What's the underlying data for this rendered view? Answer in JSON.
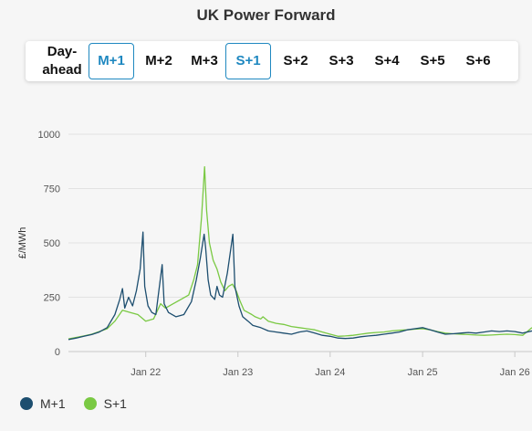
{
  "title": "UK Power Forward",
  "tabs": [
    {
      "id": "dayahead",
      "label": [
        "Day-",
        "ahead"
      ],
      "active": false
    },
    {
      "id": "m1",
      "label": "M+1",
      "active": true
    },
    {
      "id": "m2",
      "label": "M+2",
      "active": false
    },
    {
      "id": "m3",
      "label": "M+3",
      "active": false
    },
    {
      "id": "s1",
      "label": "S+1",
      "active": true
    },
    {
      "id": "s2",
      "label": "S+2",
      "active": false
    },
    {
      "id": "s3",
      "label": "S+3",
      "active": false
    },
    {
      "id": "s4",
      "label": "S+4",
      "active": false
    },
    {
      "id": "s5",
      "label": "S+5",
      "active": false
    },
    {
      "id": "s6",
      "label": "S+6",
      "active": false
    }
  ],
  "colors": {
    "m1": "#1d4e6f",
    "s1": "#7ac943",
    "accent": "#1f88c0"
  },
  "legend": [
    {
      "name": "M+1",
      "color": "#1d4e6f"
    },
    {
      "name": "S+1",
      "color": "#7ac943"
    }
  ],
  "chart_data": {
    "type": "line",
    "ylabel": "£/MWh",
    "ylim": [
      0,
      1000
    ],
    "yticks": [
      0,
      250,
      500,
      750,
      1000
    ],
    "xlim": [
      "2021-03-01",
      "2026-03-10"
    ],
    "xticks": [
      {
        "date": "2022-01-01",
        "label": "Jan 22"
      },
      {
        "date": "2023-01-01",
        "label": "Jan 23"
      },
      {
        "date": "2024-01-01",
        "label": "Jan 24"
      },
      {
        "date": "2025-01-01",
        "label": "Jan 25"
      },
      {
        "date": "2026-01-01",
        "label": "Jan 26"
      }
    ],
    "grid": true,
    "legend_position": "bottom-left",
    "series": [
      {
        "name": "M+1",
        "color": "#1d4e6f",
        "points": [
          [
            "2021-03-01",
            55
          ],
          [
            "2021-04-01",
            62
          ],
          [
            "2021-05-01",
            70
          ],
          [
            "2021-06-01",
            78
          ],
          [
            "2021-07-01",
            90
          ],
          [
            "2021-08-01",
            110
          ],
          [
            "2021-09-01",
            170
          ],
          [
            "2021-09-20",
            240
          ],
          [
            "2021-10-01",
            290
          ],
          [
            "2021-10-10",
            200
          ],
          [
            "2021-10-25",
            250
          ],
          [
            "2021-11-10",
            210
          ],
          [
            "2021-11-25",
            280
          ],
          [
            "2021-12-10",
            380
          ],
          [
            "2021-12-21",
            550
          ],
          [
            "2021-12-28",
            300
          ],
          [
            "2022-01-10",
            210
          ],
          [
            "2022-01-25",
            180
          ],
          [
            "2022-02-10",
            170
          ],
          [
            "2022-02-24",
            300
          ],
          [
            "2022-03-07",
            400
          ],
          [
            "2022-03-15",
            220
          ],
          [
            "2022-04-01",
            180
          ],
          [
            "2022-05-01",
            160
          ],
          [
            "2022-06-01",
            170
          ],
          [
            "2022-07-01",
            230
          ],
          [
            "2022-07-20",
            330
          ],
          [
            "2022-08-05",
            430
          ],
          [
            "2022-08-20",
            540
          ],
          [
            "2022-08-26",
            480
          ],
          [
            "2022-09-05",
            330
          ],
          [
            "2022-09-15",
            260
          ],
          [
            "2022-10-01",
            240
          ],
          [
            "2022-10-10",
            300
          ],
          [
            "2022-10-20",
            260
          ],
          [
            "2022-11-01",
            250
          ],
          [
            "2022-11-20",
            360
          ],
          [
            "2022-12-12",
            540
          ],
          [
            "2022-12-20",
            300
          ],
          [
            "2023-01-05",
            210
          ],
          [
            "2023-01-20",
            160
          ],
          [
            "2023-02-10",
            140
          ],
          [
            "2023-03-01",
            120
          ],
          [
            "2023-04-01",
            110
          ],
          [
            "2023-05-01",
            95
          ],
          [
            "2023-06-01",
            90
          ],
          [
            "2023-07-01",
            85
          ],
          [
            "2023-08-01",
            80
          ],
          [
            "2023-09-01",
            90
          ],
          [
            "2023-10-01",
            95
          ],
          [
            "2023-11-01",
            85
          ],
          [
            "2023-12-01",
            75
          ],
          [
            "2024-01-01",
            70
          ],
          [
            "2024-02-01",
            62
          ],
          [
            "2024-03-01",
            60
          ],
          [
            "2024-04-01",
            62
          ],
          [
            "2024-05-01",
            68
          ],
          [
            "2024-06-01",
            72
          ],
          [
            "2024-07-01",
            75
          ],
          [
            "2024-08-01",
            80
          ],
          [
            "2024-09-01",
            85
          ],
          [
            "2024-10-01",
            90
          ],
          [
            "2024-11-01",
            100
          ],
          [
            "2024-12-01",
            105
          ],
          [
            "2025-01-01",
            110
          ],
          [
            "2025-02-01",
            100
          ],
          [
            "2025-03-01",
            90
          ],
          [
            "2025-04-01",
            80
          ],
          [
            "2025-05-01",
            82
          ],
          [
            "2025-06-01",
            85
          ],
          [
            "2025-07-01",
            88
          ],
          [
            "2025-08-01",
            85
          ],
          [
            "2025-09-01",
            90
          ],
          [
            "2025-10-01",
            95
          ],
          [
            "2025-11-01",
            92
          ],
          [
            "2025-12-01",
            95
          ],
          [
            "2026-01-01",
            92
          ],
          [
            "2026-02-01",
            85
          ],
          [
            "2026-03-10",
            95
          ]
        ]
      },
      {
        "name": "S+1",
        "color": "#7ac943",
        "points": [
          [
            "2021-03-01",
            58
          ],
          [
            "2021-04-01",
            65
          ],
          [
            "2021-05-01",
            72
          ],
          [
            "2021-06-01",
            80
          ],
          [
            "2021-07-01",
            92
          ],
          [
            "2021-08-01",
            105
          ],
          [
            "2021-09-01",
            140
          ],
          [
            "2021-10-01",
            190
          ],
          [
            "2021-11-01",
            180
          ],
          [
            "2021-12-01",
            170
          ],
          [
            "2022-01-01",
            140
          ],
          [
            "2022-02-01",
            150
          ],
          [
            "2022-03-01",
            220
          ],
          [
            "2022-03-20",
            200
          ],
          [
            "2022-04-20",
            220
          ],
          [
            "2022-05-20",
            240
          ],
          [
            "2022-06-20",
            260
          ],
          [
            "2022-07-10",
            330
          ],
          [
            "2022-07-25",
            400
          ],
          [
            "2022-08-10",
            620
          ],
          [
            "2022-08-22",
            850
          ],
          [
            "2022-08-30",
            650
          ],
          [
            "2022-09-10",
            500
          ],
          [
            "2022-09-25",
            420
          ],
          [
            "2022-10-10",
            380
          ],
          [
            "2022-10-25",
            320
          ],
          [
            "2022-11-10",
            280
          ],
          [
            "2022-11-25",
            300
          ],
          [
            "2022-12-10",
            310
          ],
          [
            "2022-12-25",
            280
          ],
          [
            "2023-01-10",
            230
          ],
          [
            "2023-01-25",
            190
          ],
          [
            "2023-02-10",
            180
          ],
          [
            "2023-02-25",
            170
          ],
          [
            "2023-03-10",
            160
          ],
          [
            "2023-04-01",
            150
          ],
          [
            "2023-04-10",
            160
          ],
          [
            "2023-05-01",
            140
          ],
          [
            "2023-06-01",
            130
          ],
          [
            "2023-07-01",
            125
          ],
          [
            "2023-08-01",
            115
          ],
          [
            "2023-09-01",
            110
          ],
          [
            "2023-10-01",
            105
          ],
          [
            "2023-11-01",
            100
          ],
          [
            "2023-12-01",
            90
          ],
          [
            "2024-01-01",
            80
          ],
          [
            "2024-02-01",
            70
          ],
          [
            "2024-03-01",
            72
          ],
          [
            "2024-04-01",
            75
          ],
          [
            "2024-05-01",
            80
          ],
          [
            "2024-06-01",
            85
          ],
          [
            "2024-07-01",
            88
          ],
          [
            "2024-08-01",
            90
          ],
          [
            "2024-09-01",
            95
          ],
          [
            "2024-10-01",
            98
          ],
          [
            "2024-11-01",
            100
          ],
          [
            "2024-12-01",
            103
          ],
          [
            "2025-01-01",
            105
          ],
          [
            "2025-02-01",
            100
          ],
          [
            "2025-03-01",
            92
          ],
          [
            "2025-04-01",
            85
          ],
          [
            "2025-05-01",
            82
          ],
          [
            "2025-06-01",
            80
          ],
          [
            "2025-07-01",
            78
          ],
          [
            "2025-08-01",
            76
          ],
          [
            "2025-09-01",
            75
          ],
          [
            "2025-10-01",
            76
          ],
          [
            "2025-11-01",
            78
          ],
          [
            "2025-12-01",
            80
          ],
          [
            "2026-01-01",
            78
          ],
          [
            "2026-02-01",
            75
          ],
          [
            "2026-03-10",
            110
          ]
        ]
      }
    ]
  }
}
